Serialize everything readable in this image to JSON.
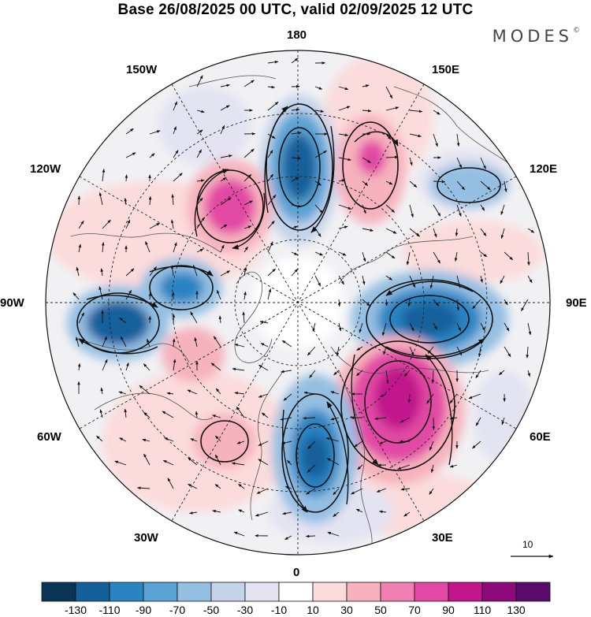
{
  "title": "Base 26/08/2025 00 UTC, valid 02/09/2025 12 UTC",
  "brand": "MODES",
  "brand_mark": "©",
  "longitude_labels": {
    "n180": "180",
    "w150": "150W",
    "e150": "150E",
    "w120": "120W",
    "e120": "120E",
    "w90": "90W",
    "e90": "90E",
    "w60": "60W",
    "e60": "60E",
    "w30": "30W",
    "e30": "30E",
    "s0": "0"
  },
  "vector_reference": "10",
  "colorbar": {
    "labels": [
      "-130",
      "-110",
      "-90",
      "-70",
      "-50",
      "-30",
      "-10",
      "10",
      "30",
      "50",
      "70",
      "90",
      "110",
      "130"
    ],
    "colors": [
      "#0a3456",
      "#13619b",
      "#2a84c2",
      "#5aa3d4",
      "#94bfe2",
      "#c3d3ea",
      "#e4e3f2",
      "#ffffff",
      "#fcdbdc",
      "#f6b2bd",
      "#f080b2",
      "#e248a4",
      "#c1168c",
      "#8e0a7c",
      "#5a0a6a"
    ]
  },
  "anomaly_centers": [
    {
      "sign": "negative",
      "value": -90,
      "sector": "180"
    },
    {
      "sign": "negative",
      "value": -70,
      "sector": "90W"
    },
    {
      "sign": "negative",
      "value": -90,
      "sector": "90W-60W"
    },
    {
      "sign": "negative",
      "value": -90,
      "sector": "90E"
    },
    {
      "sign": "negative",
      "value": -90,
      "sector": "0-30E"
    },
    {
      "sign": "negative",
      "value": -50,
      "sector": "120E"
    },
    {
      "sign": "positive",
      "value": 70,
      "sector": "120W"
    },
    {
      "sign": "positive",
      "value": 50,
      "sector": "150E"
    },
    {
      "sign": "positive",
      "value": 90,
      "sector": "60E"
    },
    {
      "sign": "positive",
      "value": 50,
      "sector": "60W"
    },
    {
      "sign": "positive",
      "value": 30,
      "sector": "30W"
    }
  ]
}
